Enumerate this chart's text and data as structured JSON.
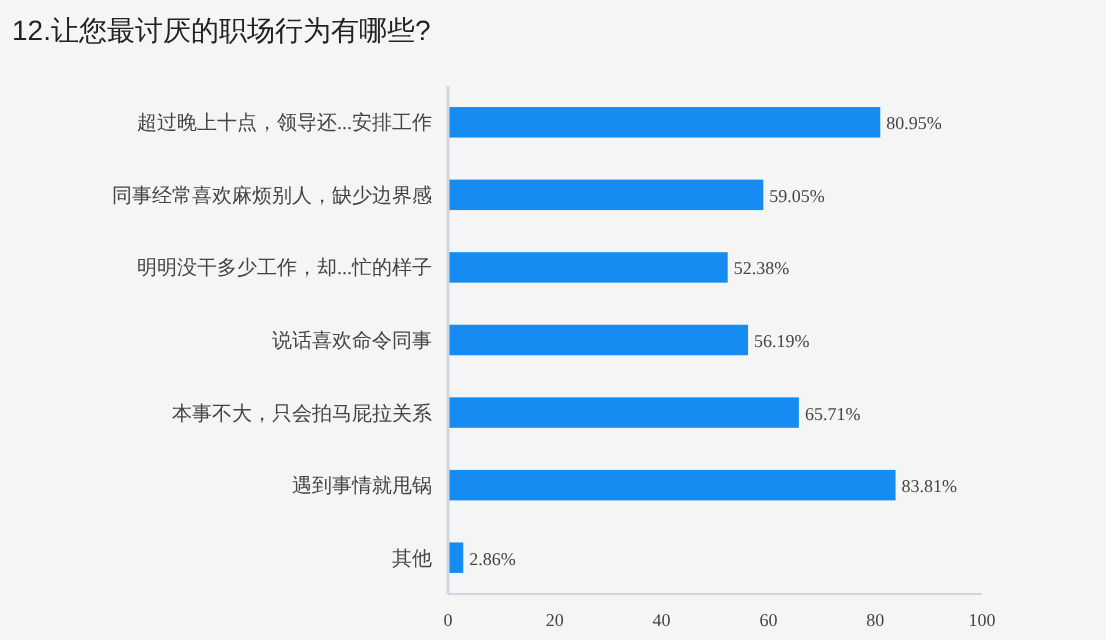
{
  "chart_data": {
    "type": "bar",
    "orientation": "horizontal",
    "title": "12.让您最讨厌的职场行为有哪些?",
    "categories": [
      "超过晚上十点，领导还...安排工作",
      "同事经常喜欢麻烦别人，缺少边界感",
      "明明没干多少工作，却...忙的样子",
      "说话喜欢命令同事",
      "本事不大，只会拍马屁拉关系",
      "遇到事情就甩锅",
      "其他"
    ],
    "values": [
      80.95,
      59.05,
      52.38,
      56.19,
      65.71,
      83.81,
      2.86
    ],
    "value_labels": [
      "80.95%",
      "59.05%",
      "52.38%",
      "56.19%",
      "65.71%",
      "83.81%",
      "2.86%"
    ],
    "color": "#168cf2",
    "xlim": [
      0,
      100
    ],
    "xticks": [
      0,
      20,
      40,
      60,
      80,
      100
    ]
  }
}
